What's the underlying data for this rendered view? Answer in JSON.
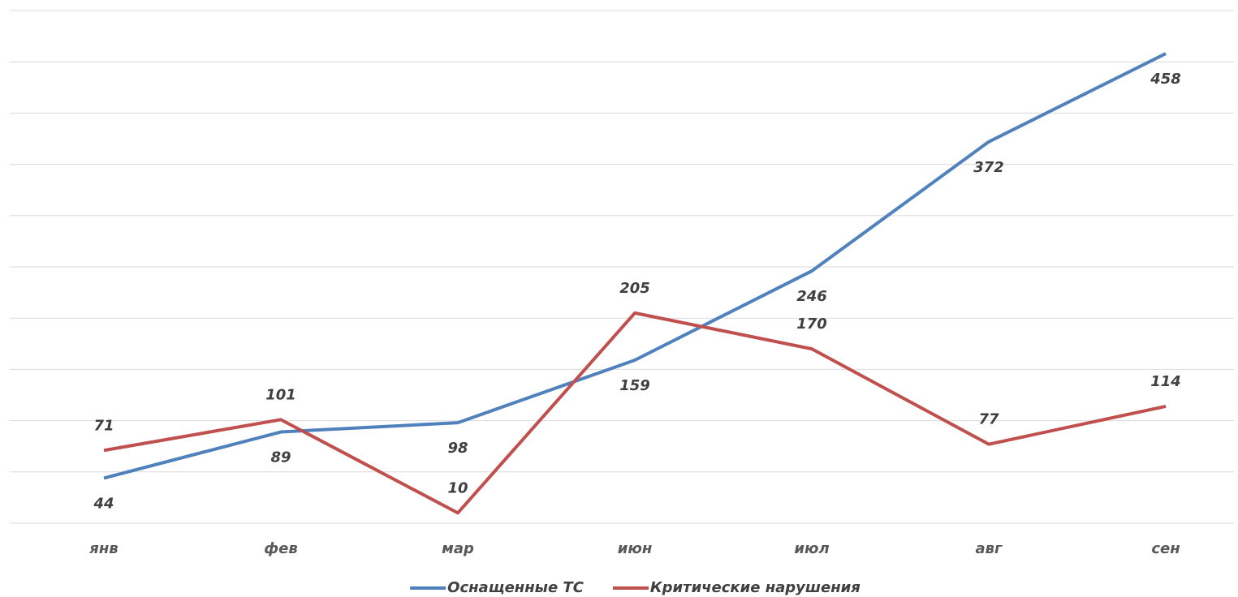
{
  "chart_data": {
    "type": "line",
    "categories": [
      "янв",
      "фев",
      "мар",
      "июн",
      "июл",
      "авг",
      "сен"
    ],
    "series": [
      {
        "name": "Оснащенные ТС",
        "color": "#4f81bd",
        "values": [
          44,
          89,
          98,
          159,
          246,
          372,
          458
        ],
        "label_position": "below"
      },
      {
        "name": "Критические нарушения",
        "color": "#c0504d",
        "values": [
          71,
          101,
          10,
          205,
          170,
          77,
          114
        ],
        "label_position": "above"
      }
    ],
    "ylim": [
      0,
      500
    ],
    "yticks": [
      0,
      50,
      100,
      150,
      200,
      250,
      300,
      350,
      400,
      450,
      500
    ],
    "show_ytick_labels": false,
    "grid": true,
    "legend": "bottom"
  }
}
